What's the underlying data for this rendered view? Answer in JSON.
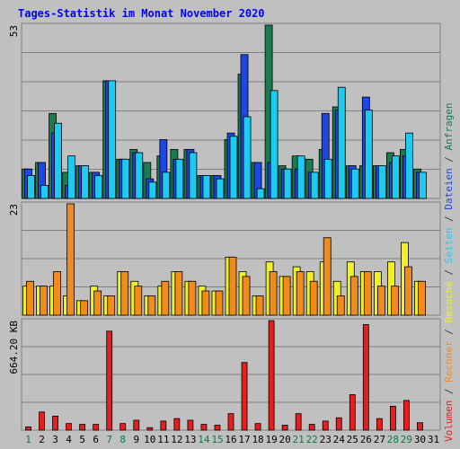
{
  "chart_data": {
    "type": "bar",
    "title": "Tages-Statistik im Monat November 2020",
    "colors": {
      "background": "#c0c0c0",
      "plot_bg": "#c0c0c0",
      "frame": "#808080",
      "title": "#0000ff",
      "weekday_label": "#008040",
      "weekend_label": "#808080",
      "anfragen": "#1a7a50",
      "dateien": "#1e46e6",
      "seiten": "#1ecbf0",
      "besuche": "#f0f028",
      "rechner": "#f08c1e",
      "volumen": "#e61e1e"
    },
    "days": [
      "1",
      "2",
      "3",
      "4",
      "5",
      "6",
      "7",
      "8",
      "9",
      "10",
      "11",
      "12",
      "13",
      "14",
      "15",
      "16",
      "17",
      "18",
      "19",
      "20",
      "21",
      "22",
      "23",
      "24",
      "25",
      "26",
      "27",
      "28",
      "29",
      "30",
      "31"
    ],
    "day_label_color_kind": [
      "weekend",
      "weekday",
      "weekday",
      "weekday",
      "weekday",
      "weekday",
      "weekend",
      "weekend",
      "weekday",
      "weekday",
      "weekday",
      "weekday",
      "weekday",
      "weekend",
      "weekend",
      "weekday",
      "weekday",
      "weekday",
      "weekday",
      "weekday",
      "weekend",
      "weekend",
      "weekday",
      "weekday",
      "weekday",
      "weekday",
      "weekday",
      "weekend",
      "weekend",
      "weekday",
      "weekday"
    ],
    "panels": [
      {
        "id": "hits",
        "ymax_label": "53",
        "ymax": 53,
        "series": [
          {
            "name": "Anfragen",
            "color_key": "anfragen",
            "values": [
              9,
              11,
              26,
              8,
              10,
              8,
              36,
              12,
              15,
              11,
              13,
              15,
              15,
              7,
              7,
              18,
              38,
              11,
              53,
              10,
              13,
              12,
              15,
              28,
              10,
              10,
              10,
              14,
              15,
              9,
              null
            ]
          },
          {
            "name": "Dateien",
            "color_key": "dateien",
            "values": [
              9,
              11,
              20,
              4,
              10,
              8,
              36,
              12,
              14,
              6,
              18,
              12,
              15,
              7,
              7,
              20,
              44,
              11,
              11,
              9,
              9,
              8,
              26,
              27,
              10,
              31,
              10,
              11,
              13,
              8,
              null
            ]
          },
          {
            "name": "Seiten",
            "color_key": "seiten",
            "values": [
              7,
              4,
              23,
              13,
              10,
              7,
              36,
              12,
              14,
              5,
              8,
              12,
              14,
              7,
              6,
              19,
              25,
              3,
              33,
              9,
              13,
              8,
              12,
              34,
              9,
              27,
              10,
              13,
              20,
              8,
              null
            ]
          }
        ]
      },
      {
        "id": "visits",
        "ymax_label": "23",
        "ymax": 23,
        "series": [
          {
            "name": "Besuche",
            "color_key": "besuche",
            "values": [
              6,
              6,
              6,
              4,
              3,
              6,
              4,
              9,
              7,
              4,
              6,
              9,
              7,
              6,
              5,
              12,
              9,
              4,
              11,
              8,
              10,
              9,
              11,
              7,
              11,
              9,
              9,
              11,
              15,
              7,
              null
            ]
          },
          {
            "name": "Rechner",
            "color_key": "rechner",
            "values": [
              7,
              6,
              9,
              23,
              3,
              5,
              4,
              9,
              6,
              4,
              7,
              9,
              7,
              5,
              5,
              12,
              8,
              4,
              9,
              8,
              9,
              7,
              16,
              4,
              8,
              9,
              6,
              6,
              10,
              7,
              null
            ]
          }
        ]
      },
      {
        "id": "volume",
        "ymax_label": "664.20 KB",
        "ymax": 664.2,
        "series": [
          {
            "name": "Volumen",
            "color_key": "volumen",
            "values": [
              20,
              110,
              85,
              40,
              35,
              35,
              600,
              40,
              60,
              15,
              55,
              70,
              60,
              35,
              30,
              100,
              410,
              40,
              664,
              30,
              100,
              35,
              55,
              75,
              215,
              640,
              70,
              145,
              180,
              45,
              null
            ]
          }
        ]
      }
    ],
    "right_legend": [
      {
        "text": "Volumen",
        "color_key": "volumen"
      },
      {
        "text": " / ",
        "color_key": "frame"
      },
      {
        "text": "Rechner",
        "color_key": "rechner"
      },
      {
        "text": " / ",
        "color_key": "frame"
      },
      {
        "text": "Besuche",
        "color_key": "besuche"
      },
      {
        "text": " / ",
        "color_key": "frame"
      },
      {
        "text": "Seiten",
        "color_key": "seiten"
      },
      {
        "text": " / ",
        "color_key": "frame"
      },
      {
        "text": "Dateien",
        "color_key": "dateien"
      },
      {
        "text": " / ",
        "color_key": "frame"
      },
      {
        "text": "Anfragen",
        "color_key": "anfragen"
      }
    ]
  }
}
